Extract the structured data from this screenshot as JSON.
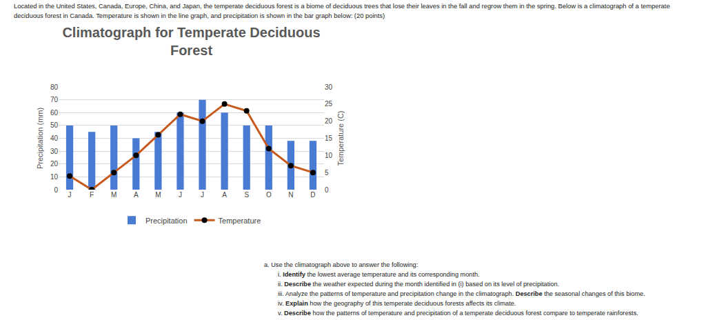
{
  "intro": "Located in the United States, Canada, Europe, China, and Japan, the temperate deciduous forest is a biome of deciduous trees that lose their leaves in the fall and regrow them in the spring. Below is a climatograph of a temperate deciduous forest in Canada. Temperature is shown in the line graph, and precipitation is shown in the bar graph below: (20 points)",
  "chart_data": {
    "type": "bar",
    "title": "Climatograph for Temperate Deciduous Forest",
    "ylabel": "Precipitation (mm)",
    "y2label": "Temperature (C)",
    "categories": [
      "J",
      "F",
      "M",
      "A",
      "M",
      "J",
      "J",
      "A",
      "S",
      "O",
      "N",
      "D"
    ],
    "series": [
      {
        "name": "Precipitation",
        "type": "bar",
        "color": "#4a7bd4",
        "values": [
          50,
          45,
          50,
          40,
          45,
          60,
          70,
          60,
          50,
          50,
          38,
          38
        ]
      },
      {
        "name": "Temperature",
        "type": "line",
        "color": "#c65a1e",
        "marker": "circle",
        "axis": "y2",
        "values": [
          4,
          0,
          5,
          10,
          16,
          22,
          20,
          25,
          23,
          12,
          7,
          5
        ]
      }
    ],
    "ylim": [
      0,
      80
    ],
    "yticks": [
      0,
      10,
      20,
      30,
      40,
      50,
      60,
      70,
      80
    ],
    "y2lim": [
      0,
      30
    ],
    "y2ticks": [
      0,
      5,
      10,
      15,
      20,
      25,
      30
    ],
    "grid": true,
    "legend": "bottom"
  },
  "questions": {
    "lead": "a. Use the climatograph above to answer the following:",
    "items": [
      {
        "number": "i.",
        "segments": [
          {
            "text": "Identify",
            "bold": true
          },
          {
            "text": " the lowest average temperature and its corresponding month.",
            "bold": false
          }
        ]
      },
      {
        "number": "ii.",
        "segments": [
          {
            "text": "Describe",
            "bold": true
          },
          {
            "text": " the weather expected during the month identified in (i) based on its level of precipitation.",
            "bold": false
          }
        ]
      },
      {
        "number": "iii.",
        "segments": [
          {
            "text": "Analyze the patterns of temperature and precipitation change in the climatograph.",
            "bold": false
          },
          {
            "text": " Describe",
            "bold": true
          },
          {
            "text": " the seasonal changes of this biome.",
            "bold": false
          }
        ]
      },
      {
        "number": "iv.",
        "segments": [
          {
            "text": "Explain",
            "bold": true
          },
          {
            "text": " how the geography of this temperate deciduous forests affects its climate.",
            "bold": false
          }
        ]
      },
      {
        "number": "v.",
        "segments": [
          {
            "text": "Describe",
            "bold": true
          },
          {
            "text": " how the patterns of temperature and precipitation of a temperate deciduous forest compare to temperate rainforests.",
            "bold": false
          }
        ]
      }
    ]
  }
}
